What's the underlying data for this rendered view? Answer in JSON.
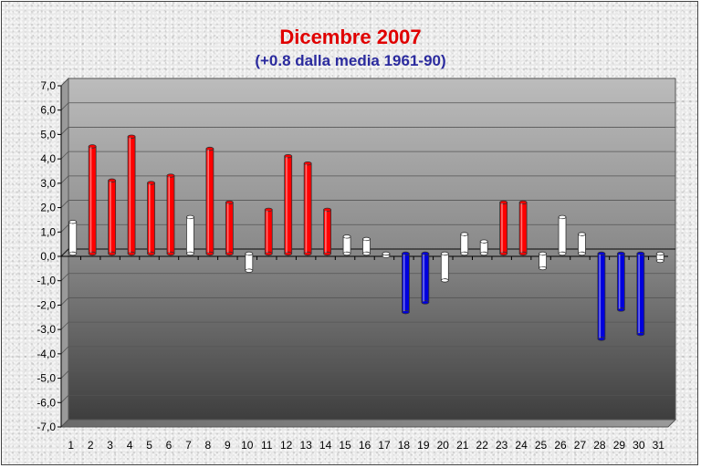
{
  "chart_data": {
    "type": "bar",
    "title": "Dicembre 2007",
    "subtitle": "(+0.8 dalla media 1961-90)",
    "title_color": "#e00000",
    "subtitle_color": "#2b2b9e",
    "categories": [
      "1",
      "2",
      "3",
      "4",
      "5",
      "6",
      "7",
      "8",
      "9",
      "10",
      "11",
      "12",
      "13",
      "14",
      "15",
      "16",
      "17",
      "18",
      "19",
      "20",
      "21",
      "22",
      "23",
      "24",
      "25",
      "26",
      "27",
      "28",
      "29",
      "30",
      "31"
    ],
    "values": [
      1.3,
      4.4,
      3.0,
      4.8,
      2.9,
      3.2,
      1.5,
      4.3,
      2.1,
      -0.7,
      1.8,
      4.0,
      3.7,
      1.8,
      0.7,
      0.6,
      -0.1,
      -2.4,
      -2.0,
      -1.1,
      0.8,
      0.5,
      2.1,
      2.1,
      -0.6,
      1.5,
      0.8,
      -3.5,
      -2.3,
      -3.3,
      -0.3
    ],
    "ylim": [
      -7,
      7
    ],
    "yticks": [
      "-7,0",
      "-6,0",
      "-5,0",
      "-4,0",
      "-3,0",
      "-2,0",
      "-1,0",
      "0,0",
      "1,0",
      "2,0",
      "3,0",
      "4,0",
      "5,0",
      "6,0",
      "7,0"
    ],
    "ytick_values": [
      -7,
      -6,
      -5,
      -4,
      -3,
      -2,
      -1,
      0,
      1,
      2,
      3,
      4,
      5,
      6,
      7
    ],
    "grid": true,
    "colors": {
      "warm": "#ff0000",
      "neutral": "#ffffff",
      "cold": "#0000dd"
    },
    "color_thresholds": {
      "warm_above": 1.7,
      "cold_below": -1.5
    }
  }
}
